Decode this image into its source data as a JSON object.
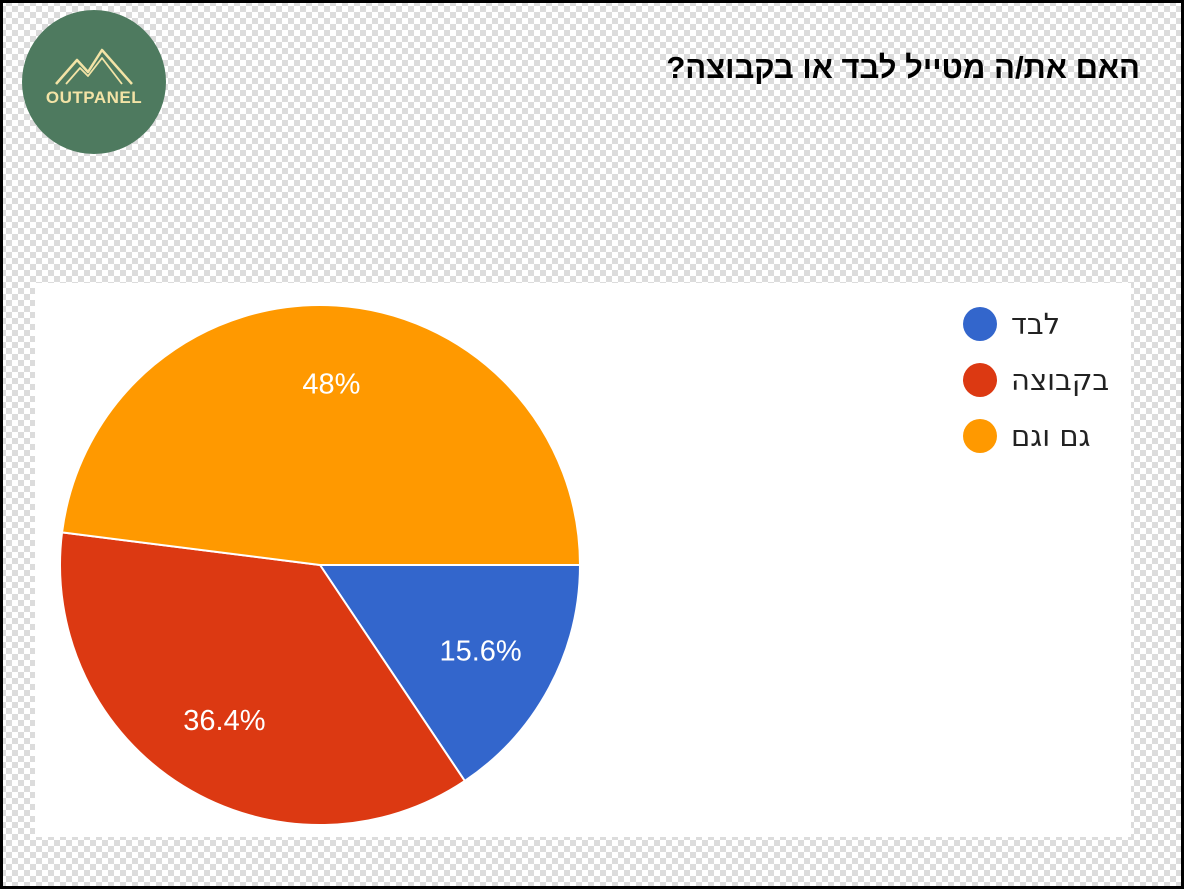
{
  "logo": {
    "text": "OUTPANEL",
    "background": "#4e7a5f",
    "accent": "#f3e3a6"
  },
  "title": "האם את/ה מטייל לבד או בקבוצה?",
  "chart_data": {
    "type": "pie",
    "title": "האם את/ה מטייל לבד או בקבוצה?",
    "slices": [
      {
        "name": "לבד",
        "value": 15.6,
        "label": "15.6%",
        "color": "#3366cc"
      },
      {
        "name": "בקבוצה",
        "value": 36.4,
        "label": "36.4%",
        "color": "#dc3912"
      },
      {
        "name": "גם וגם",
        "value": 48,
        "label": "48%",
        "color": "#ff9900"
      }
    ],
    "legend_position": "right"
  }
}
